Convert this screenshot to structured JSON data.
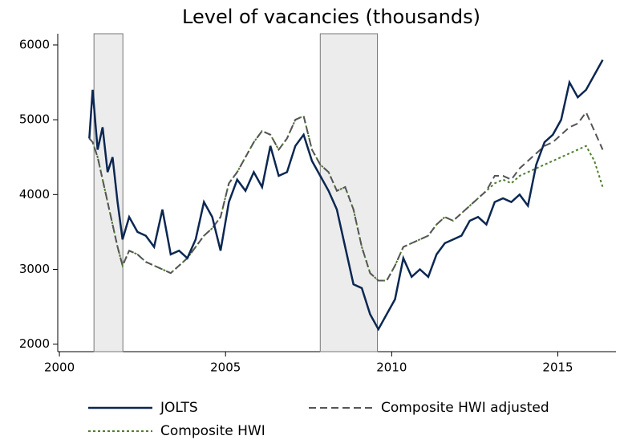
{
  "chart_data": {
    "type": "line",
    "title": "Level of vacancies (thousands)",
    "x": [
      2000.9,
      2001.0,
      2001.15,
      2001.3,
      2001.45,
      2001.6,
      2001.75,
      2001.9,
      2002.1,
      2002.35,
      2002.6,
      2002.85,
      2003.1,
      2003.35,
      2003.6,
      2003.85,
      2004.1,
      2004.35,
      2004.6,
      2004.85,
      2005.1,
      2005.35,
      2005.6,
      2005.85,
      2006.1,
      2006.35,
      2006.6,
      2006.85,
      2007.1,
      2007.35,
      2007.6,
      2007.85,
      2008.1,
      2008.35,
      2008.6,
      2008.85,
      2009.1,
      2009.35,
      2009.6,
      2009.85,
      2010.1,
      2010.35,
      2010.6,
      2010.85,
      2011.1,
      2011.35,
      2011.6,
      2011.85,
      2012.1,
      2012.35,
      2012.6,
      2012.85,
      2013.1,
      2013.35,
      2013.6,
      2013.85,
      2014.1,
      2014.35,
      2014.6,
      2014.85,
      2015.1,
      2015.35,
      2015.6,
      2015.85,
      2016.1,
      2016.35
    ],
    "series": [
      {
        "name": "JOLTS",
        "color": "#0b2752",
        "style": "solid",
        "values": [
          4750,
          5400,
          4600,
          4900,
          4300,
          4500,
          3900,
          3400,
          3700,
          3500,
          3450,
          3300,
          3800,
          3200,
          3250,
          3150,
          3400,
          3900,
          3700,
          3250,
          3900,
          4200,
          4050,
          4300,
          4100,
          4650,
          4250,
          4300,
          4650,
          4800,
          4450,
          4250,
          4050,
          3800,
          3300,
          2800,
          2750,
          2400,
          2200,
          2400,
          2600,
          3150,
          2900,
          3000,
          2900,
          3200,
          3350,
          3400,
          3450,
          3650,
          3700,
          3600,
          3900,
          3950,
          3900,
          4000,
          3850,
          4400,
          4700,
          4800,
          5000,
          5500,
          5300,
          5400,
          5600,
          5800
        ]
      },
      {
        "name": "Composite HWI adjusted",
        "color": "#555555",
        "style": "dashed",
        "values": [
          4750,
          4700,
          4500,
          4200,
          3900,
          3600,
          3300,
          3050,
          3250,
          3200,
          3100,
          3050,
          3000,
          2950,
          3050,
          3150,
          3300,
          3450,
          3550,
          3700,
          4150,
          4300,
          4500,
          4700,
          4850,
          4800,
          4600,
          4750,
          5000,
          5050,
          4600,
          4400,
          4300,
          4050,
          4100,
          3800,
          3300,
          2950,
          2850,
          2850,
          3050,
          3300,
          3350,
          3400,
          3450,
          3600,
          3700,
          3650,
          3750,
          3850,
          3950,
          4050,
          4250,
          4250,
          4200,
          4350,
          4450,
          4550,
          4650,
          4700,
          4800,
          4900,
          4950,
          5100,
          4850,
          4600
        ]
      },
      {
        "name": "Composite HWI",
        "color": "#4f7d2e",
        "style": "dotted",
        "values": [
          4750,
          4700,
          4500,
          4200,
          3900,
          3600,
          3300,
          3050,
          3250,
          3200,
          3100,
          3050,
          3000,
          2950,
          3050,
          3150,
          3300,
          3450,
          3550,
          3700,
          4150,
          4300,
          4500,
          4700,
          4850,
          4800,
          4600,
          4750,
          5000,
          5050,
          4600,
          4400,
          4300,
          4050,
          4100,
          3800,
          3300,
          2950,
          2850,
          2850,
          3050,
          3300,
          3350,
          3400,
          3450,
          3600,
          3700,
          3650,
          3750,
          3850,
          3950,
          4050,
          4150,
          4200,
          4150,
          4250,
          4300,
          4350,
          4400,
          4450,
          4500,
          4550,
          4600,
          4650,
          4450,
          4100
        ]
      }
    ],
    "shaded_periods": [
      [
        2001.04,
        2001.91
      ],
      [
        2007.85,
        2009.57
      ]
    ],
    "xlim": [
      1999.95,
      2016.75
    ],
    "xticks": [
      2000,
      2005,
      2010,
      2015
    ],
    "ylim": [
      1900,
      6150
    ],
    "yticks": [
      2000,
      3000,
      4000,
      5000,
      6000
    ]
  }
}
